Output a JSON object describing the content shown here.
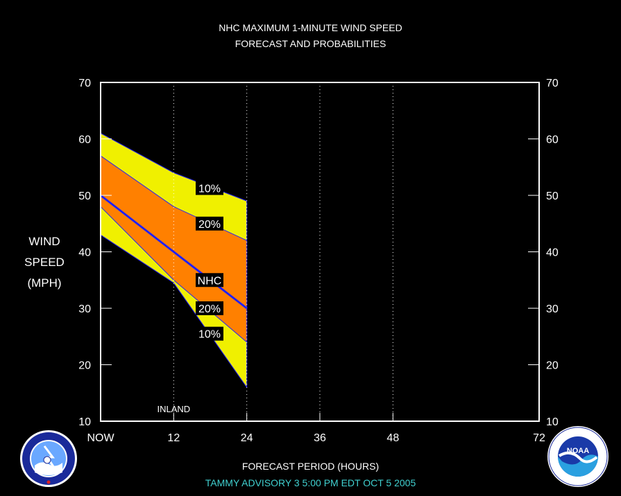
{
  "title_line1": "NHC MAXIMUM 1-MINUTE WIND SPEED",
  "title_line2": "FORECAST AND PROBABILITIES",
  "y_axis_label_lines": [
    "WIND",
    "SPEED",
    "(MPH)"
  ],
  "x_axis_label": "FORECAST PERIOD (HOURS)",
  "footer": "TAMMY   ADVISORY  3 5:00  PM  EDT  OCT  5  2005",
  "footer_color": "#40d0d0",
  "logos": {
    "left": "nws-logo",
    "left_text": "NATIONAL WEATHER SERVICE",
    "right": "noaa-logo",
    "right_center_text": "NOAA",
    "right_ring_text": "NATIONAL OCEANIC AND ATMOSPHERIC ADMINISTRATION · U.S. DEPARTMENT OF COMMERCE"
  },
  "chart_data": {
    "type": "area",
    "title": "NHC MAXIMUM 1-MINUTE WIND SPEED FORECAST AND PROBABILITIES",
    "xlabel": "FORECAST PERIOD (HOURS)",
    "ylabel": "WIND SPEED (MPH)",
    "xlim": [
      0,
      72
    ],
    "ylim": [
      10,
      70
    ],
    "x_ticks": [
      0,
      12,
      24,
      36,
      48,
      72
    ],
    "x_tick_labels": [
      "NOW",
      "12",
      "24",
      "36",
      "48",
      "72"
    ],
    "y_ticks": [
      10,
      20,
      30,
      40,
      50,
      60,
      70
    ],
    "y_tick_labels": [
      "10",
      "20",
      "30",
      "40",
      "50",
      "60",
      "70"
    ],
    "vertical_gridlines_at": [
      12,
      24,
      36,
      48
    ],
    "x": [
      0,
      12,
      24
    ],
    "series": [
      {
        "name": "10%",
        "role": "upper",
        "values": [
          61,
          54,
          49
        ]
      },
      {
        "name": "20%",
        "role": "upper",
        "values": [
          57,
          48,
          42
        ]
      },
      {
        "name": "NHC",
        "role": "forecast",
        "values": [
          50,
          40,
          30
        ]
      },
      {
        "name": "20%",
        "role": "lower",
        "values": [
          48,
          35,
          24
        ]
      },
      {
        "name": "10%",
        "role": "lower",
        "values": [
          43,
          34.5,
          16
        ]
      }
    ],
    "band_labels": [
      {
        "text": "10%",
        "x": 18,
        "y": 51.3
      },
      {
        "text": "20%",
        "x": 18,
        "y": 45
      },
      {
        "text": "NHC",
        "x": 18,
        "y": 35
      },
      {
        "text": "20%",
        "x": 18,
        "y": 30
      },
      {
        "text": "10%",
        "x": 18,
        "y": 25.5
      }
    ],
    "annotations": [
      {
        "text": "INLAND",
        "x": 12,
        "y": 12.2
      }
    ],
    "colors": {
      "outer_band": "#f0f000",
      "inner_band": "#ff8000",
      "forecast_line": "#2020ff",
      "frame": "#ffffff"
    }
  }
}
